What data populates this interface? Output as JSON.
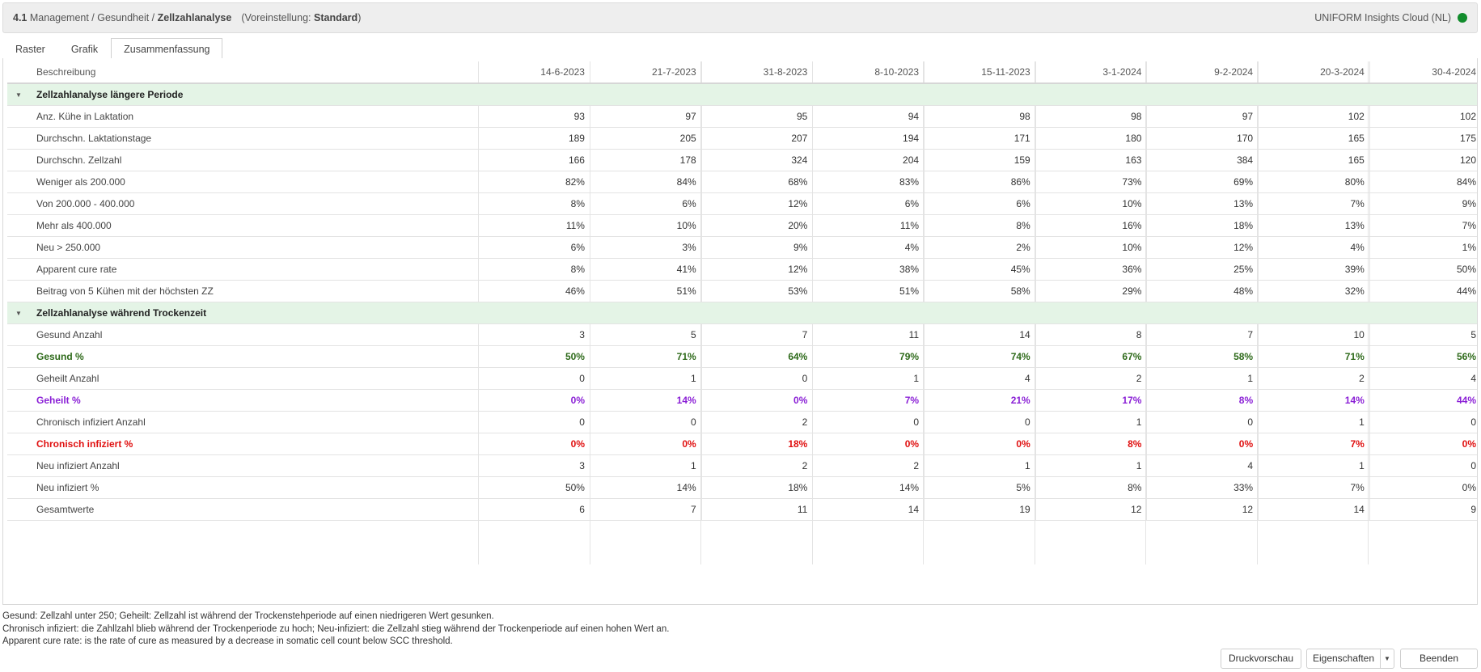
{
  "header": {
    "section_number": "4.1",
    "breadcrumb_path": "Management / Gesundheit /",
    "page": "Zellzahlanalyse",
    "preset_label": "(Voreinstellung:",
    "preset_value": "Standard",
    "preset_close": ")",
    "app_name": "UNIFORM Insights Cloud (NL)",
    "status_color": "#118c2c"
  },
  "tabs": [
    "Raster",
    "Grafik",
    "Zusammenfassung"
  ],
  "active_tab": "Zusammenfassung",
  "table": {
    "description_header": "Beschreibung",
    "dates": [
      "14-6-2023",
      "21-7-2023",
      "31-8-2023",
      "8-10-2023",
      "15-11-2023",
      "3-1-2024",
      "9-2-2024",
      "20-3-2024",
      "30-4-2024"
    ],
    "groups": [
      {
        "title": "Zellzahlanalyse längere Periode",
        "rows": [
          {
            "label": "Anz. Kühe in Laktation",
            "values": [
              "93",
              "97",
              "95",
              "94",
              "98",
              "98",
              "97",
              "102",
              "102"
            ]
          },
          {
            "label": "Durchschn. Laktationstage",
            "values": [
              "189",
              "205",
              "207",
              "194",
              "171",
              "180",
              "170",
              "165",
              "175"
            ]
          },
          {
            "label": "Durchschn. Zellzahl",
            "values": [
              "166",
              "178",
              "324",
              "204",
              "159",
              "163",
              "384",
              "165",
              "120"
            ]
          },
          {
            "label": "Weniger als 200.000",
            "values": [
              "82%",
              "84%",
              "68%",
              "83%",
              "86%",
              "73%",
              "69%",
              "80%",
              "84%"
            ]
          },
          {
            "label": "Von 200.000 - 400.000",
            "values": [
              "8%",
              "6%",
              "12%",
              "6%",
              "6%",
              "10%",
              "13%",
              "7%",
              "9%"
            ]
          },
          {
            "label": "Mehr als 400.000",
            "values": [
              "11%",
              "10%",
              "20%",
              "11%",
              "8%",
              "16%",
              "18%",
              "13%",
              "7%"
            ]
          },
          {
            "label": "Neu > 250.000",
            "values": [
              "6%",
              "3%",
              "9%",
              "4%",
              "2%",
              "10%",
              "12%",
              "4%",
              "1%"
            ]
          },
          {
            "label": "Apparent cure rate",
            "values": [
              "8%",
              "41%",
              "12%",
              "38%",
              "45%",
              "36%",
              "25%",
              "39%",
              "50%"
            ]
          },
          {
            "label": "Beitrag von 5 Kühen mit der höchsten ZZ",
            "values": [
              "46%",
              "51%",
              "53%",
              "51%",
              "58%",
              "29%",
              "48%",
              "32%",
              "44%"
            ]
          }
        ]
      },
      {
        "title": "Zellzahlanalyse während Trockenzeit",
        "rows": [
          {
            "label": "Gesund Anzahl",
            "values": [
              "3",
              "5",
              "7",
              "11",
              "14",
              "8",
              "7",
              "10",
              "5"
            ]
          },
          {
            "label": "Gesund %",
            "style": "green",
            "values": [
              "50%",
              "71%",
              "64%",
              "79%",
              "74%",
              "67%",
              "58%",
              "71%",
              "56%"
            ]
          },
          {
            "label": "Geheilt Anzahl",
            "values": [
              "0",
              "1",
              "0",
              "1",
              "4",
              "2",
              "1",
              "2",
              "4"
            ]
          },
          {
            "label": "Geheilt %",
            "style": "purple",
            "values": [
              "0%",
              "14%",
              "0%",
              "7%",
              "21%",
              "17%",
              "8%",
              "14%",
              "44%"
            ]
          },
          {
            "label": "Chronisch infiziert Anzahl",
            "values": [
              "0",
              "0",
              "2",
              "0",
              "0",
              "1",
              "0",
              "1",
              "0"
            ]
          },
          {
            "label": "Chronisch infiziert %",
            "style": "red",
            "values": [
              "0%",
              "0%",
              "18%",
              "0%",
              "0%",
              "8%",
              "0%",
              "7%",
              "0%"
            ]
          },
          {
            "label": "Neu infiziert Anzahl",
            "values": [
              "3",
              "1",
              "2",
              "2",
              "1",
              "1",
              "4",
              "1",
              "0"
            ]
          },
          {
            "label": "Neu infiziert %",
            "values": [
              "50%",
              "14%",
              "18%",
              "14%",
              "5%",
              "8%",
              "33%",
              "7%",
              "0%"
            ]
          },
          {
            "label": "Gesamtwerte",
            "values": [
              "6",
              "7",
              "11",
              "14",
              "19",
              "12",
              "12",
              "14",
              "9"
            ]
          }
        ]
      }
    ]
  },
  "notes": [
    "Gesund: Zellzahl unter 250; Geheilt: Zellzahl ist während der Trockenstehperiode auf einen niedrigeren Wert gesunken.",
    "Chronisch infiziert: die Zahllzahl blieb während der Trockenperiode zu hoch; Neu-infiziert: die Zellzahl stieg während der Trockenperiode auf einen hohen Wert an.",
    "Apparent cure rate: is the rate of cure as measured by a decrease in somatic cell count below SCC threshold."
  ],
  "buttons": {
    "print_preview": "Druckvorschau",
    "properties": "Eigenschaften",
    "close": "Beenden"
  },
  "colors": {
    "group_bg": "#e4f4e6",
    "green_text": "#2e6a1a",
    "purple_text": "#8a1fd6",
    "red_text": "#e01010"
  }
}
